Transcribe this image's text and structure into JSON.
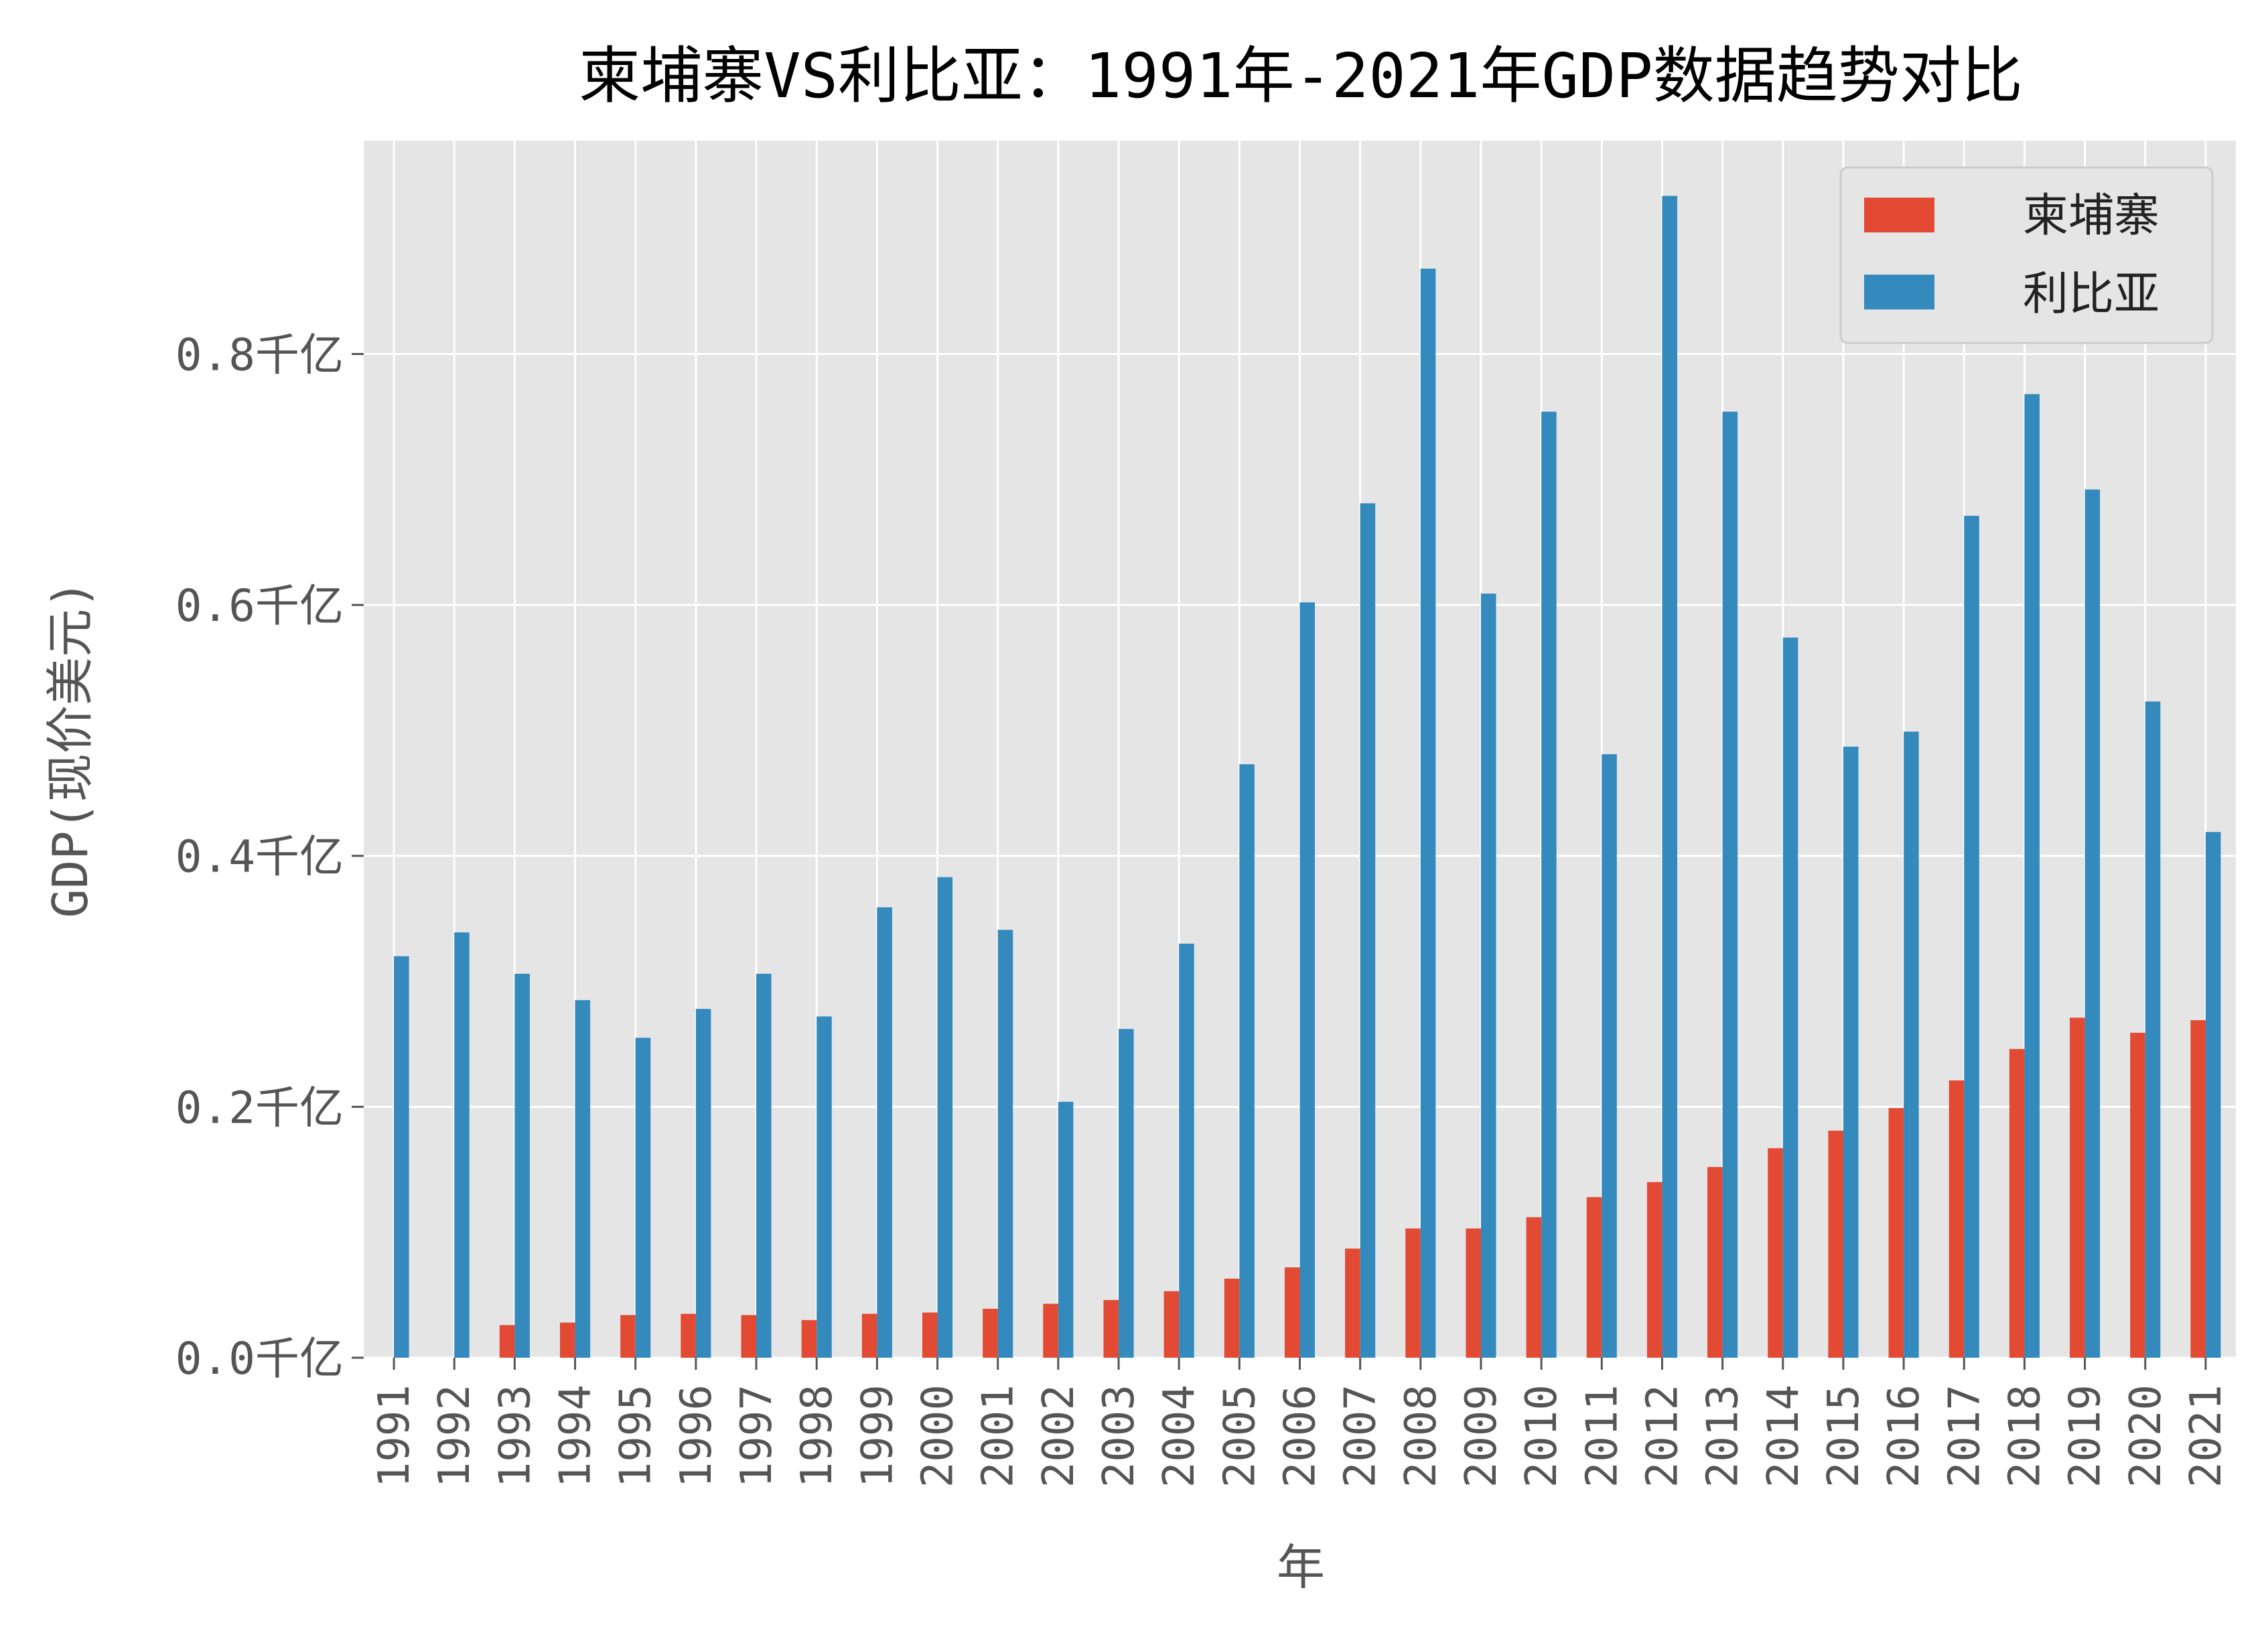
{
  "chart_data": {
    "type": "bar",
    "title": "柬埔寨VS利比亚：1991年-2021年GDP数据趋势对比",
    "xlabel": "年",
    "ylabel": "GDP(现价美元)",
    "ylim": [
      0,
      0.97
    ],
    "yticks": [
      0.0,
      0.2,
      0.4,
      0.6,
      0.8
    ],
    "ytick_labels": [
      "0.0千亿",
      "0.2千亿",
      "0.4千亿",
      "0.6千亿",
      "0.8千亿"
    ],
    "grid": true,
    "legend_position": "top-right",
    "categories": [
      "1991",
      "1992",
      "1993",
      "1994",
      "1995",
      "1996",
      "1997",
      "1998",
      "1999",
      "2000",
      "2001",
      "2002",
      "2003",
      "2004",
      "2005",
      "2006",
      "2007",
      "2008",
      "2009",
      "2010",
      "2011",
      "2012",
      "2013",
      "2014",
      "2015",
      "2016",
      "2017",
      "2018",
      "2019",
      "2020",
      "2021"
    ],
    "series": [
      {
        "name": "柬埔寨",
        "color": "#E24A33",
        "values": [
          null,
          null,
          0.026,
          0.028,
          0.034,
          0.035,
          0.034,
          0.03,
          0.035,
          0.036,
          0.039,
          0.043,
          0.046,
          0.053,
          0.063,
          0.072,
          0.087,
          0.103,
          0.103,
          0.112,
          0.128,
          0.14,
          0.152,
          0.167,
          0.181,
          0.199,
          0.221,
          0.246,
          0.271,
          0.259,
          0.269
        ]
      },
      {
        "name": "利比亚",
        "color": "#348ABD",
        "values": [
          0.32,
          0.339,
          0.306,
          0.285,
          0.255,
          0.278,
          0.306,
          0.272,
          0.359,
          0.383,
          0.341,
          0.204,
          0.262,
          0.33,
          0.473,
          0.602,
          0.681,
          0.868,
          0.609,
          0.754,
          0.481,
          0.926,
          0.754,
          0.574,
          0.487,
          0.499,
          0.671,
          0.768,
          0.692,
          0.523,
          0.419
        ]
      }
    ],
    "colors": {
      "plot_background": "#E5E5E5",
      "grid": "#FFFFFF"
    }
  }
}
